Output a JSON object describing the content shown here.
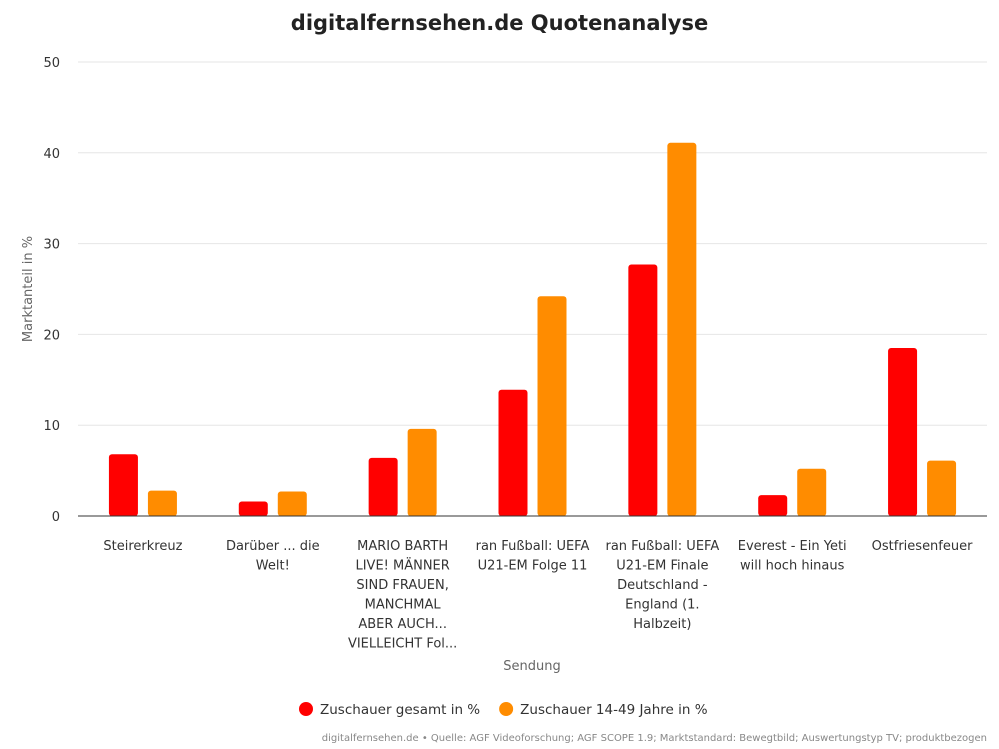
{
  "chart_data": {
    "type": "bar",
    "title": "digitalfernsehen.de Quotenanalyse",
    "xlabel": "Sendung",
    "ylabel": "Marktanteil in %",
    "ylim": [
      0,
      50
    ],
    "yticks": [
      0,
      10,
      20,
      30,
      40,
      50
    ],
    "grid": true,
    "legend_position": "bottom",
    "categories": [
      "Steirerkreuz",
      "Darüber ... die Welt!",
      "MARIO BARTH LIVE! MÄNNER SIND FRAUEN, MANCHMAL ABER AUCH... VIELLEICHT Fol...",
      "ran Fußball: UEFA U21-EM Folge 11",
      "ran Fußball: UEFA U21-EM Finale Deutschland - England (1. Halbzeit)",
      "Everest - Ein Yeti will hoch hinaus",
      "Ostfriesenfeuer"
    ],
    "category_lines": [
      [
        "Steirerkreuz"
      ],
      [
        "Darüber ... die",
        "Welt!"
      ],
      [
        "MARIO BARTH",
        "LIVE! MÄNNER",
        "SIND FRAUEN,",
        "MANCHMAL",
        "ABER AUCH...",
        "VIELLEICHT Fol..."
      ],
      [
        "ran Fußball: UEFA",
        "U21-EM Folge 11"
      ],
      [
        "ran Fußball: UEFA",
        "U21-EM Finale",
        "Deutschland -",
        "England (1.",
        "Halbzeit)"
      ],
      [
        "Everest - Ein Yeti",
        "will hoch hinaus"
      ],
      [
        "Ostfriesenfeuer"
      ]
    ],
    "series": [
      {
        "name": "Zuschauer gesamt in %",
        "color": "#ff0000",
        "values": [
          6.8,
          1.6,
          6.4,
          13.9,
          27.7,
          2.3,
          18.5
        ]
      },
      {
        "name": "Zuschauer 14-49 Jahre in %",
        "color": "#ff8c00",
        "values": [
          2.8,
          2.7,
          9.6,
          24.2,
          41.1,
          5.2,
          6.1
        ]
      }
    ]
  },
  "credits": "digitalfernsehen.de • Quelle: AGF Videoforschung; AGF SCOPE 1.9; Marktstandard: Bewegtbild; Auswertungstyp TV; produktbezogen"
}
